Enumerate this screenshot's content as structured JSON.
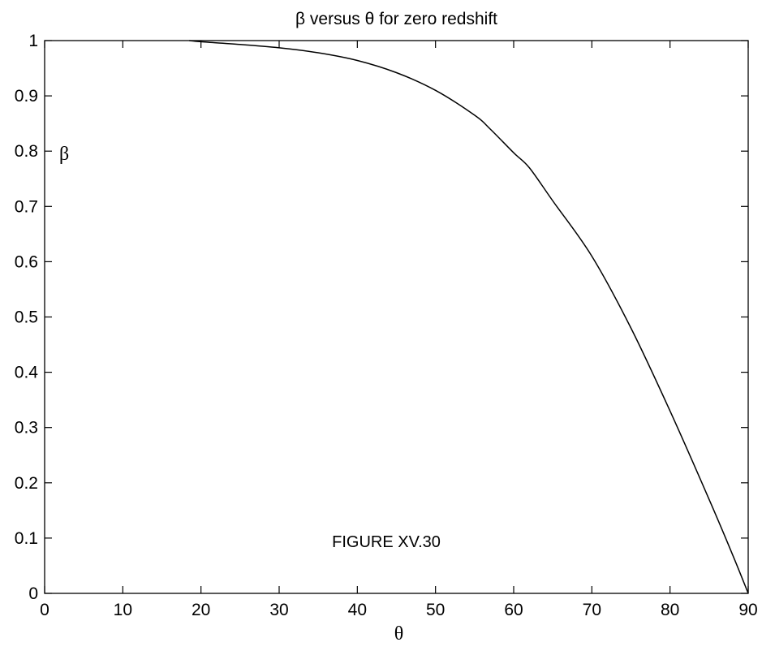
{
  "chart_data": {
    "type": "line",
    "title": "β versus θ for zero redshift",
    "xlabel": "θ",
    "ylabel": "β",
    "annotation": "FIGURE XV.30",
    "xlim": [
      0,
      90
    ],
    "ylim": [
      0,
      1
    ],
    "xticks": [
      "0",
      "10",
      "20",
      "30",
      "40",
      "50",
      "60",
      "70",
      "80",
      "90"
    ],
    "yticks": [
      "0",
      "0.1",
      "0.2",
      "0.3",
      "0.4",
      "0.5",
      "0.6",
      "0.7",
      "0.8",
      "0.9",
      "1"
    ],
    "grid": false,
    "series": [
      {
        "x": [
          18.5,
          20,
          25,
          30,
          35,
          40,
          45,
          50,
          55,
          57,
          60,
          62,
          65,
          70,
          75,
          80,
          85,
          88,
          90
        ],
        "y": [
          1.0,
          0.998,
          0.993,
          0.987,
          0.978,
          0.964,
          0.942,
          0.91,
          0.865,
          0.84,
          0.797,
          0.77,
          0.71,
          0.61,
          0.48,
          0.33,
          0.17,
          0.07,
          0.0
        ]
      }
    ]
  }
}
